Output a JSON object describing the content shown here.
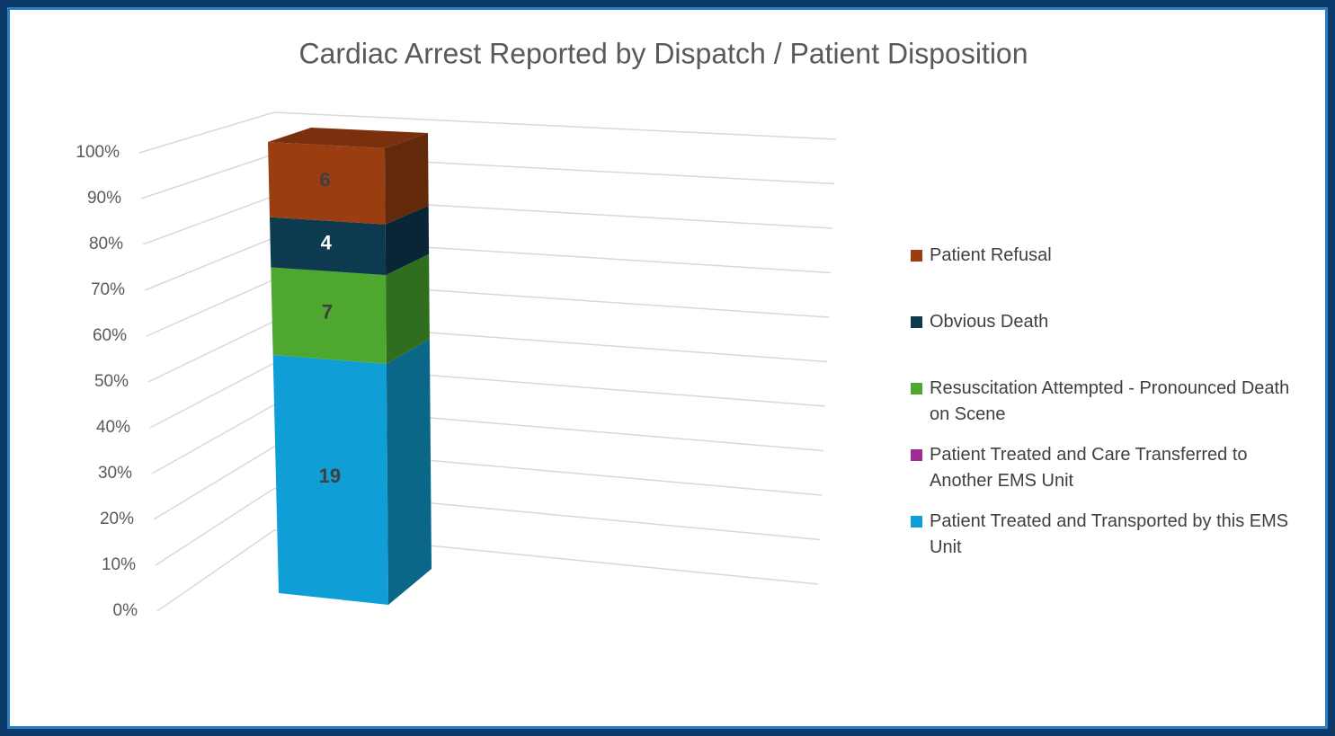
{
  "chart_data": {
    "type": "bar3d",
    "stacking": "percent",
    "title": "Cardiac Arrest Reported by Dispatch / Patient Disposition",
    "categories": [
      null
    ],
    "series": [
      {
        "name": "Patient Treated and Transported by this EMS Unit",
        "color": "#0f9ed5",
        "side_color": "#0a6788",
        "label_color": "#404040",
        "values": [
          19
        ]
      },
      {
        "name": "Patient Treated and Care Transferred to Another EMS Unit",
        "color": "#a02b93",
        "side_color": "#6a1c61",
        "label_color": "#404040",
        "values": [
          0
        ]
      },
      {
        "name": "Resuscitation Attempted - Pronounced Death on Scene",
        "color": "#4ea72e",
        "side_color": "#2f6e1e",
        "label_color": "#404040",
        "values": [
          7
        ]
      },
      {
        "name": "Obvious Death",
        "color": "#0e3a50",
        "side_color": "#0a2535",
        "label_color": "#ffffff",
        "values": [
          4
        ]
      },
      {
        "name": "Patient Refusal",
        "color": "#9a3e11",
        "side_color": "#622a0a",
        "top_color": "#7a300d",
        "label_color": "#404040",
        "values": [
          6
        ]
      }
    ],
    "ylim": [
      0,
      100
    ],
    "yticks": [
      {
        "value": 0,
        "label": "0%"
      },
      {
        "value": 10,
        "label": "10%"
      },
      {
        "value": 20,
        "label": "20%"
      },
      {
        "value": 30,
        "label": "30%"
      },
      {
        "value": 40,
        "label": "40%"
      },
      {
        "value": 50,
        "label": "50%"
      },
      {
        "value": 60,
        "label": "60%"
      },
      {
        "value": 70,
        "label": "70%"
      },
      {
        "value": 80,
        "label": "80%"
      },
      {
        "value": 90,
        "label": "90%"
      },
      {
        "value": 100,
        "label": "100%"
      }
    ],
    "grid": true,
    "legend": "right"
  }
}
